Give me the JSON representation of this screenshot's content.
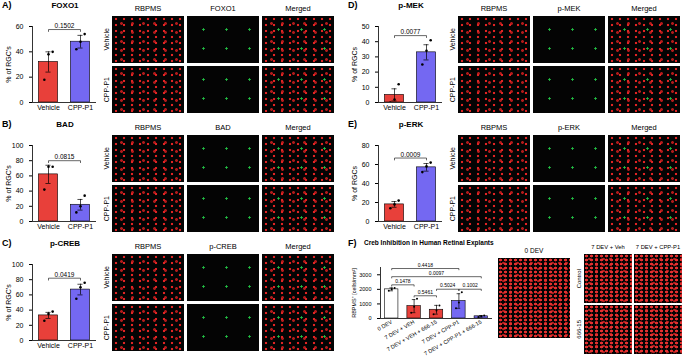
{
  "chart_data": [
    {
      "type": "bar",
      "panel_label": "A)",
      "title": "FOXO1",
      "y_label": "% of RGC's",
      "categories": [
        "Vehicle",
        "CPP-P1"
      ],
      "values": [
        32,
        48
      ],
      "errors": [
        8,
        5
      ],
      "points": [
        [
          18,
          38,
          40
        ],
        [
          42,
          48,
          54
        ]
      ],
      "colors": [
        "#e8403a",
        "#7468f2"
      ],
      "ylim": [
        0,
        60
      ],
      "yticks": [
        0,
        20,
        40,
        60
      ],
      "comparisons": [
        {
          "between": [
            0,
            1
          ],
          "label": "0.1502"
        }
      ]
    },
    {
      "type": "bar",
      "panel_label": "B)",
      "title": "BAD",
      "y_label": "% of RGC's",
      "categories": [
        "Vehicle",
        "CPP-P1"
      ],
      "values": [
        62,
        22
      ],
      "errors": [
        12,
        7
      ],
      "points": [
        [
          42,
          72,
          72
        ],
        [
          12,
          20,
          34
        ]
      ],
      "colors": [
        "#e8403a",
        "#7468f2"
      ],
      "ylim": [
        0,
        100
      ],
      "yticks": [
        0,
        20,
        40,
        60,
        80,
        100
      ],
      "comparisons": [
        {
          "between": [
            0,
            1
          ],
          "label": "0.0815"
        }
      ]
    },
    {
      "type": "bar",
      "panel_label": "C)",
      "title": "p-CREB",
      "y_label": "% of RGC's",
      "categories": [
        "Vehicle",
        "CPP-P1"
      ],
      "values": [
        33,
        67
      ],
      "errors": [
        4,
        7
      ],
      "points": [
        [
          26,
          35,
          38
        ],
        [
          55,
          70,
          76
        ]
      ],
      "colors": [
        "#e8403a",
        "#7468f2"
      ],
      "ylim": [
        0,
        100
      ],
      "yticks": [
        0,
        20,
        40,
        60,
        80,
        100
      ],
      "comparisons": [
        {
          "between": [
            0,
            1
          ],
          "label": "0.0419"
        }
      ]
    },
    {
      "type": "bar",
      "panel_label": "D)",
      "title": "p-MEK",
      "y_label": "% of RGCs",
      "categories": [
        "Vehicle",
        "CPP-P1"
      ],
      "values": [
        5,
        33
      ],
      "errors": [
        4,
        5
      ],
      "points": [
        [
          0,
          2,
          12
        ],
        [
          25,
          34,
          41
        ]
      ],
      "colors": [
        "#e8403a",
        "#7468f2"
      ],
      "ylim": [
        0,
        50
      ],
      "yticks": [
        0,
        10,
        20,
        30,
        40,
        50
      ],
      "comparisons": [
        {
          "between": [
            0,
            1
          ],
          "label": "0.0077"
        }
      ]
    },
    {
      "type": "bar",
      "panel_label": "E)",
      "title": "p-ERK",
      "y_label": "% of RGCs",
      "categories": [
        "Vehicle",
        "CPP-P1"
      ],
      "values": [
        18,
        57
      ],
      "errors": [
        3,
        4
      ],
      "points": [
        [
          14,
          18,
          22
        ],
        [
          52,
          58,
          62
        ]
      ],
      "colors": [
        "#e8403a",
        "#7468f2"
      ],
      "ylim": [
        0,
        80
      ],
      "yticks": [
        0,
        20,
        40,
        60,
        80
      ],
      "comparisons": [
        {
          "between": [
            0,
            1
          ],
          "label": "0.0009"
        }
      ]
    },
    {
      "type": "bar",
      "panel_label": "F)",
      "title": "Creb Inhibition in Human Retinal Explants",
      "y_label": "RBPMS⁺ [cells/mm²]",
      "categories": [
        "0 DEV",
        "7 DEV + VEH",
        "7 DEV + VEH + 666-15",
        "7 DEV + CPP-P1",
        "7 DEV + CPP-P1 + 666-15"
      ],
      "values": [
        2000,
        850,
        600,
        1200,
        150
      ],
      "errors": [
        100,
        450,
        300,
        500,
        50
      ],
      "points": [
        [
          1900,
          2000,
          2100
        ],
        [
          400,
          800,
          1350
        ],
        [
          300,
          550,
          900
        ],
        [
          700,
          1100,
          1800
        ],
        [
          100,
          150,
          200
        ]
      ],
      "colors": [
        "#ffffff",
        "#e8403a",
        "#e8403a",
        "#7468f2",
        "#7468f2"
      ],
      "ylim": [
        0,
        3500
      ],
      "yticks": [
        0,
        1000,
        2000,
        3000
      ],
      "comparisons": [
        {
          "between": [
            0,
            1
          ],
          "label": "0.1478"
        },
        {
          "between": [
            1,
            2
          ],
          "label": "0.5461"
        },
        {
          "between": [
            2,
            3
          ],
          "label": "0.5024"
        },
        {
          "between": [
            3,
            4
          ],
          "label": "0.1002"
        },
        {
          "between": [
            0,
            4
          ],
          "label": "0.0097"
        },
        {
          "between": [
            0,
            3
          ],
          "label": "0.4418"
        }
      ]
    }
  ],
  "image_panels": [
    {
      "columns": [
        "RBPMS",
        "FOXO1",
        "Merged"
      ],
      "rows": [
        "Vehicle",
        "CPP-P1"
      ]
    },
    {
      "columns": [
        "RBPMS",
        "BAD",
        "Merged"
      ],
      "rows": [
        "Vehicle",
        "CPP-P1"
      ]
    },
    {
      "columns": [
        "RBPMS",
        "p-CREB",
        "Merged"
      ],
      "rows": [
        "Vehicle",
        "CPP-P1"
      ]
    },
    {
      "columns": [
        "RBPMS",
        "p-MEK",
        "Merged"
      ],
      "rows": [
        "Vehicle",
        "CPP-P1"
      ]
    },
    {
      "columns": [
        "RBPMS",
        "p-ERK",
        "Merged"
      ],
      "rows": [
        "Vehicle",
        "CPP-P1"
      ]
    },
    {
      "single": "0 DEV",
      "columns": [
        "7 DEV + Veh",
        "7 DEV + CPP-P1"
      ],
      "rows": [
        "Control",
        "666-15"
      ]
    }
  ]
}
